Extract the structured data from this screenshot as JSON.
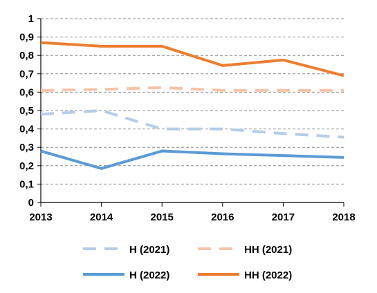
{
  "chart_data": {
    "type": "line",
    "title": "",
    "xlabel": "",
    "ylabel": "",
    "x": [
      2013,
      2014,
      2015,
      2016,
      2017,
      2018
    ],
    "x_tick_labels": [
      "2013",
      "2014",
      "2015",
      "2016",
      "2017",
      "2018"
    ],
    "ylim": [
      0,
      1
    ],
    "y_tick_labels": [
      "0",
      "0,1",
      "0,2",
      "0,3",
      "0,4",
      "0,5",
      "0,6",
      "0,7",
      "0,8",
      "0,9",
      "1"
    ],
    "grid": "horizontal dashed",
    "legend_position": "bottom",
    "series": [
      {
        "name": "H (2021)",
        "color": "#B4CDE8",
        "dashed": true,
        "values": [
          0.48,
          0.5,
          0.4,
          0.4,
          0.375,
          0.355
        ]
      },
      {
        "name": "HH (2021)",
        "color": "#F5C4A8",
        "dashed": true,
        "values": [
          0.61,
          0.615,
          0.625,
          0.61,
          0.61,
          0.61
        ]
      },
      {
        "name": "H (2022)",
        "color": "#5B9BD5",
        "dashed": false,
        "values": [
          0.28,
          0.185,
          0.28,
          0.265,
          0.255,
          0.245
        ]
      },
      {
        "name": "HH (2022)",
        "color": "#ED7D31",
        "dashed": false,
        "values": [
          0.87,
          0.85,
          0.85,
          0.745,
          0.775,
          0.69
        ]
      }
    ]
  }
}
